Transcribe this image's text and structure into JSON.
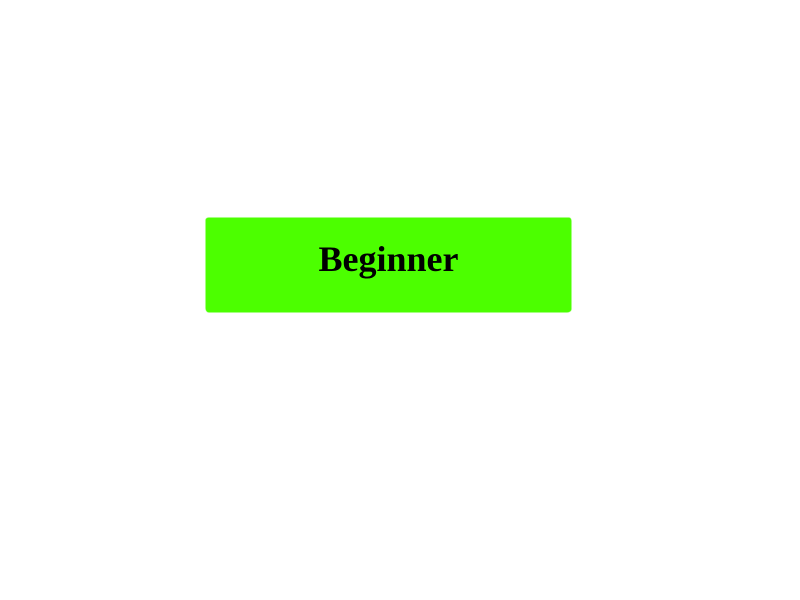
{
  "level_button": {
    "label": "Beginner",
    "background_color": "#4cff00",
    "text_color": "#000000"
  },
  "page": {
    "background_color": "#ffffff"
  }
}
